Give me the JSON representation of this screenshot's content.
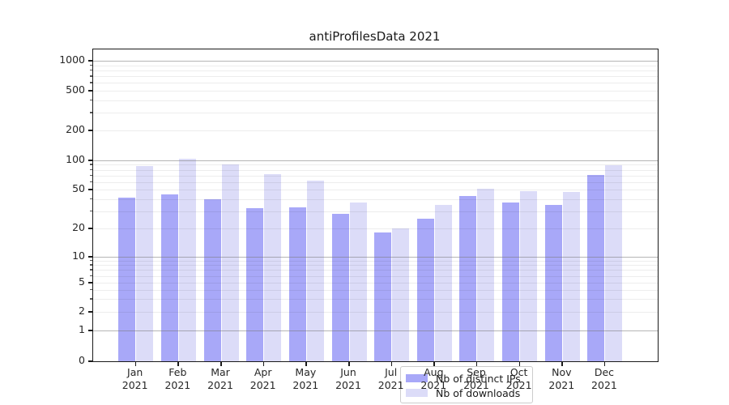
{
  "title": "antiProfilesData 2021",
  "legend": {
    "items": [
      {
        "label": "Nb of distinct IPs"
      },
      {
        "label": "Nb of downloads"
      }
    ]
  },
  "colors": {
    "distinct_ips_bar": "#a8a8f8",
    "downloads_bar": "#dcdcf8",
    "major_gridline": "#787878",
    "minor_gridline": "#ededed",
    "axis": "#1a1a1a"
  },
  "chart_data": {
    "type": "bar",
    "title": "antiProfilesData 2021",
    "categories": [
      "Jan 2021",
      "Feb 2021",
      "Mar 2021",
      "Apr 2021",
      "May 2021",
      "Jun 2021",
      "Jul 2021",
      "Aug 2021",
      "Sep 2021",
      "Oct 2021",
      "Nov 2021",
      "Dec 2021"
    ],
    "series": [
      {
        "name": "Nb of distinct IPs",
        "color": "#a8a8f8",
        "values": [
          41,
          45,
          40,
          32,
          33,
          28,
          18,
          25,
          43,
          37,
          35,
          71
        ]
      },
      {
        "name": "Nb of downloads",
        "color": "#dcdcf8",
        "values": [
          87,
          103,
          90,
          72,
          62,
          37,
          20,
          35,
          51,
          48,
          47,
          89
        ]
      }
    ],
    "xlabel": "",
    "ylabel": "",
    "yscale": "symlog",
    "y_ticks": [
      0,
      1,
      2,
      5,
      10,
      20,
      50,
      100,
      200,
      500,
      1000
    ],
    "ylim": [
      0,
      1300
    ],
    "grid": "on",
    "legend_position": "lower center"
  }
}
